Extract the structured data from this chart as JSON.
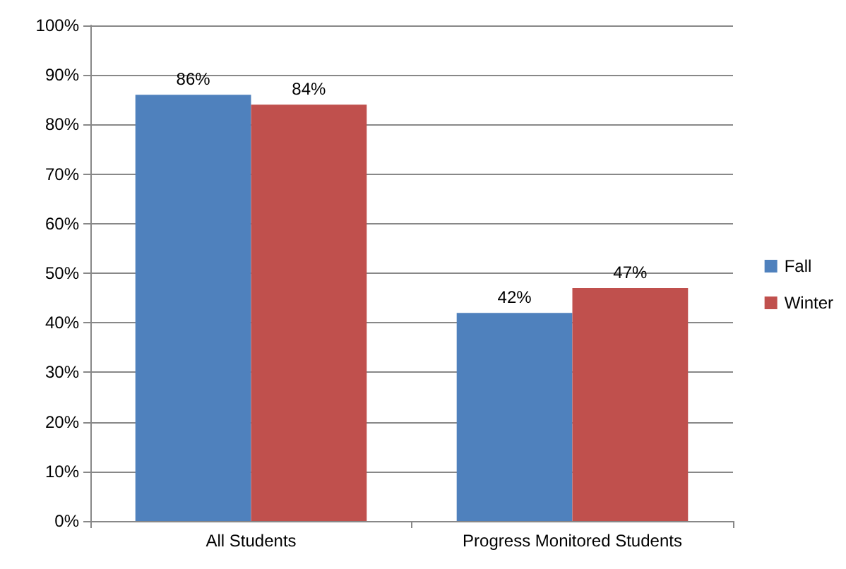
{
  "chart_data": {
    "type": "bar",
    "categories": [
      "All Students",
      "Progress Monitored Students"
    ],
    "series": [
      {
        "name": "Fall",
        "color": "#4f81bd",
        "values": [
          86,
          42
        ],
        "value_labels": [
          "86%",
          "42%"
        ]
      },
      {
        "name": "Winter",
        "color": "#c0504d",
        "values": [
          84,
          47
        ],
        "value_labels": [
          "84%",
          "47%"
        ]
      }
    ],
    "ylim": [
      0,
      100
    ],
    "yticks": [
      {
        "value": 0,
        "label": "0%"
      },
      {
        "value": 10,
        "label": "10%"
      },
      {
        "value": 20,
        "label": "20%"
      },
      {
        "value": 30,
        "label": "30%"
      },
      {
        "value": 40,
        "label": "40%"
      },
      {
        "value": 50,
        "label": "50%"
      },
      {
        "value": 60,
        "label": "60%"
      },
      {
        "value": 70,
        "label": "70%"
      },
      {
        "value": 80,
        "label": "80%"
      },
      {
        "value": 90,
        "label": "90%"
      },
      {
        "value": 100,
        "label": "100%"
      }
    ],
    "grid": "y",
    "legend": "right"
  }
}
